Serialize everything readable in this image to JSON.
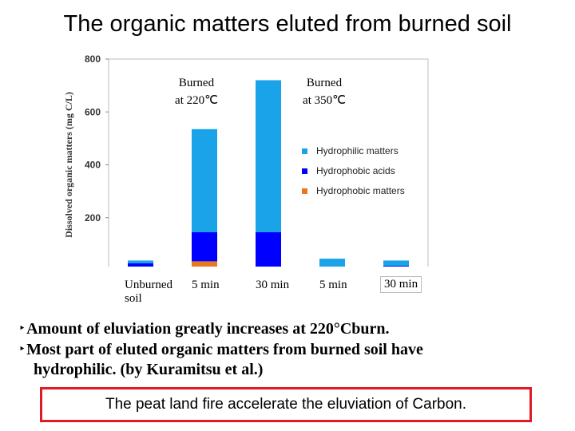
{
  "slide": {
    "title": "The organic matters eluted from burned soil",
    "bullets": [
      "Amount of eluviation greatly increases at 220°Cburn.",
      "Most part of eluted organic matters from burned soil have",
      "hydrophilic. (by Kuramitsu et al.)"
    ],
    "bullet_marker": "‣",
    "conclusion": "The peat land fire accelerate the eluviation of Carbon."
  },
  "chart_data": {
    "type": "bar",
    "stacked": true,
    "ylabel": "Dissolved organic matters (mg C/L)",
    "ylim": [
      0,
      800
    ],
    "yticks": [
      "0",
      "200",
      "400",
      "600",
      "800"
    ],
    "categories": [
      "Unburned soil",
      "5 min",
      "30 min",
      "5 min",
      "30 min"
    ],
    "category_lines": [
      [
        "Unburned",
        "soil"
      ],
      [
        "5 min"
      ],
      [
        "30 min"
      ],
      [
        "5 min"
      ],
      [
        "30 min"
      ]
    ],
    "group_labels": [
      {
        "lines": [
          "Burned",
          "at 220℃"
        ]
      },
      {
        "lines": [
          "Burned",
          "at 350℃"
        ]
      }
    ],
    "series": [
      {
        "name": "Hydrophobic matters",
        "color": "#e87722",
        "values": [
          3,
          35,
          0,
          0,
          0
        ]
      },
      {
        "name": "Hydrophobic acids",
        "color": "#0000ff",
        "values": [
          25,
          110,
          145,
          15,
          18
        ]
      },
      {
        "name": "Hydrophilic matters",
        "color": "#1aa3e8",
        "values": [
          10,
          390,
          575,
          30,
          20
        ]
      }
    ],
    "legend_order": [
      "Hydrophilic matters",
      "Hydrophobic acids",
      "Hydrophobic matters"
    ],
    "legend_position": "right"
  }
}
